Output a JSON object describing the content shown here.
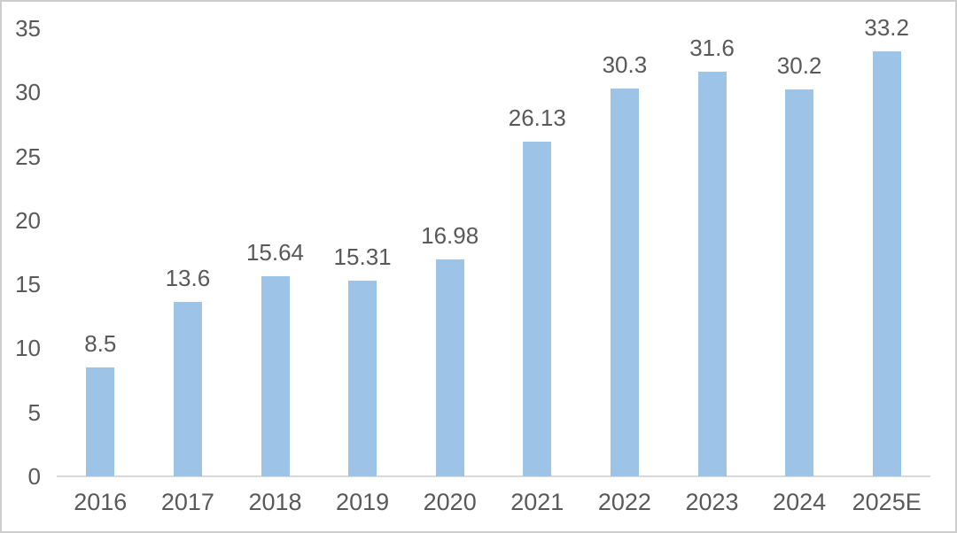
{
  "chart_data": {
    "type": "bar",
    "title": "",
    "categories": [
      "2016",
      "2017",
      "2018",
      "2019",
      "2020",
      "2021",
      "2022",
      "2023",
      "2024",
      "2025E"
    ],
    "values": [
      8.5,
      13.6,
      15.64,
      15.31,
      16.98,
      26.13,
      30.3,
      31.6,
      30.2,
      33.2
    ],
    "data_labels": [
      "8.5",
      "13.6",
      "15.64",
      "15.31",
      "16.98",
      "26.13",
      "30.3",
      "31.6",
      "30.2",
      "33.2"
    ],
    "yticks": [
      "0",
      "5",
      "10",
      "15",
      "20",
      "25",
      "30",
      "35"
    ],
    "ylim": [
      0,
      35
    ],
    "grid": false,
    "legend": "none",
    "colors": {
      "bar": "#9dc3e6",
      "axis_line": "#d9d9d9",
      "text": "#595959",
      "background": "#ffffff",
      "frame_border": "#cdcdcd"
    }
  }
}
